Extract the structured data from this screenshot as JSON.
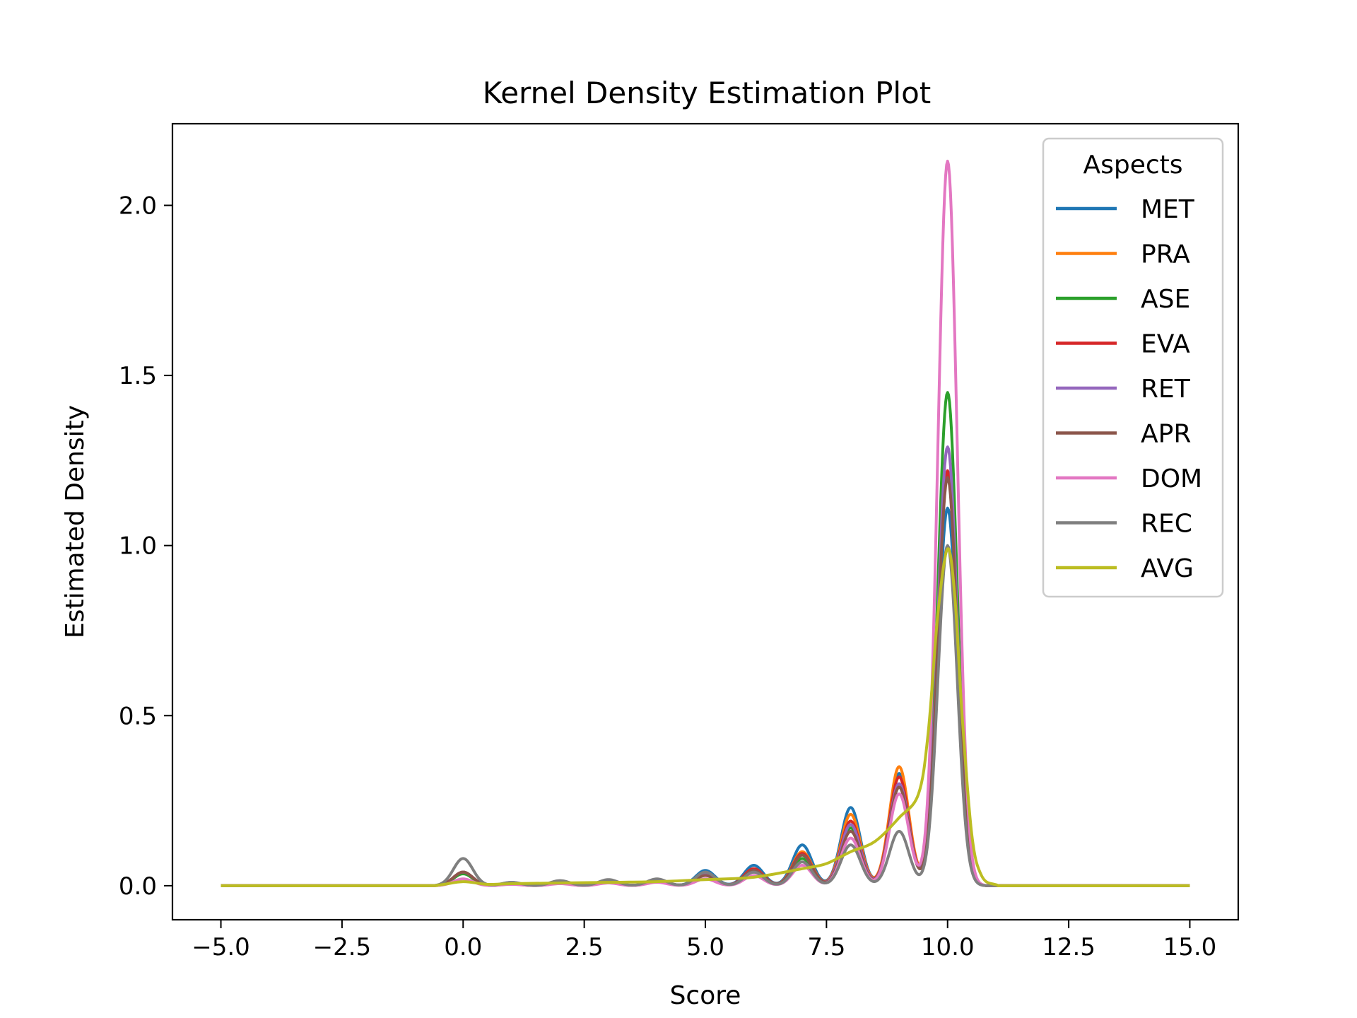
{
  "chart_data": {
    "type": "line",
    "title": "Kernel Density Estimation Plot",
    "xlabel": "Score",
    "ylabel": "Estimated Density",
    "xlim": [
      -6.0,
      16.0
    ],
    "ylim": [
      -0.1,
      2.24
    ],
    "xticks": [
      -5.0,
      -2.5,
      0.0,
      2.5,
      5.0,
      7.5,
      10.0,
      12.5,
      15.0
    ],
    "xtick_labels": [
      "−5.0",
      "−2.5",
      "0.0",
      "2.5",
      "5.0",
      "7.5",
      "10.0",
      "12.5",
      "15.0"
    ],
    "yticks": [
      0.0,
      0.5,
      1.0,
      1.5,
      2.0
    ],
    "ytick_labels": [
      "0.0",
      "0.5",
      "1.0",
      "1.5",
      "2.0"
    ],
    "grid": false,
    "legend": {
      "title": "Aspects",
      "position": "top-right"
    },
    "kde_bandwidth": 0.2,
    "series": [
      {
        "name": "MET",
        "color": "#1f77b4",
        "peaks": [
          [
            0,
            0.04
          ],
          [
            1,
            0.008
          ],
          [
            2,
            0.012
          ],
          [
            3,
            0.015
          ],
          [
            4,
            0.018
          ],
          [
            5,
            0.045
          ],
          [
            6,
            0.06
          ],
          [
            7,
            0.12
          ],
          [
            8,
            0.23
          ],
          [
            9,
            0.33
          ],
          [
            10,
            1.11
          ]
        ]
      },
      {
        "name": "PRA",
        "color": "#ff7f0e",
        "peaks": [
          [
            0,
            0.04
          ],
          [
            1,
            0.006
          ],
          [
            2,
            0.01
          ],
          [
            3,
            0.012
          ],
          [
            4,
            0.015
          ],
          [
            5,
            0.035
          ],
          [
            6,
            0.05
          ],
          [
            7,
            0.1
          ],
          [
            8,
            0.21
          ],
          [
            9,
            0.35
          ],
          [
            10,
            1.21
          ]
        ]
      },
      {
        "name": "ASE",
        "color": "#2ca02c",
        "peaks": [
          [
            0,
            0.035
          ],
          [
            1,
            0.005
          ],
          [
            2,
            0.008
          ],
          [
            3,
            0.01
          ],
          [
            4,
            0.012
          ],
          [
            5,
            0.03
          ],
          [
            6,
            0.04
          ],
          [
            7,
            0.08
          ],
          [
            8,
            0.17
          ],
          [
            9,
            0.29
          ],
          [
            10,
            1.45
          ]
        ]
      },
      {
        "name": "EVA",
        "color": "#d62728",
        "peaks": [
          [
            0,
            0.04
          ],
          [
            1,
            0.006
          ],
          [
            2,
            0.01
          ],
          [
            3,
            0.012
          ],
          [
            4,
            0.015
          ],
          [
            5,
            0.035
          ],
          [
            6,
            0.05
          ],
          [
            7,
            0.095
          ],
          [
            8,
            0.19
          ],
          [
            9,
            0.32
          ],
          [
            10,
            1.22
          ]
        ]
      },
      {
        "name": "RET",
        "color": "#9467bd",
        "peaks": [
          [
            0,
            0.04
          ],
          [
            1,
            0.006
          ],
          [
            2,
            0.01
          ],
          [
            3,
            0.012
          ],
          [
            4,
            0.015
          ],
          [
            5,
            0.035
          ],
          [
            6,
            0.045
          ],
          [
            7,
            0.09
          ],
          [
            8,
            0.18
          ],
          [
            9,
            0.3
          ],
          [
            10,
            1.29
          ]
        ]
      },
      {
        "name": "APR",
        "color": "#8c564b",
        "peaks": [
          [
            0,
            0.04
          ],
          [
            1,
            0.006
          ],
          [
            2,
            0.01
          ],
          [
            3,
            0.012
          ],
          [
            4,
            0.015
          ],
          [
            5,
            0.03
          ],
          [
            6,
            0.045
          ],
          [
            7,
            0.09
          ],
          [
            8,
            0.16
          ],
          [
            9,
            0.29
          ],
          [
            10,
            1.2
          ]
        ]
      },
      {
        "name": "DOM",
        "color": "#e377c2",
        "peaks": [
          [
            0,
            0.02
          ],
          [
            1,
            0.004
          ],
          [
            2,
            0.006
          ],
          [
            3,
            0.008
          ],
          [
            4,
            0.01
          ],
          [
            5,
            0.02
          ],
          [
            6,
            0.03
          ],
          [
            7,
            0.06
          ],
          [
            8,
            0.14
          ],
          [
            9,
            0.27
          ],
          [
            10,
            2.13
          ]
        ]
      },
      {
        "name": "REC",
        "color": "#7f7f7f",
        "peaks": [
          [
            0,
            0.08
          ],
          [
            1,
            0.01
          ],
          [
            2,
            0.015
          ],
          [
            3,
            0.018
          ],
          [
            4,
            0.02
          ],
          [
            5,
            0.04
          ],
          [
            6,
            0.04
          ],
          [
            7,
            0.07
          ],
          [
            8,
            0.12
          ],
          [
            9,
            0.16
          ],
          [
            10,
            1.0
          ]
        ]
      },
      {
        "name": "AVG",
        "color": "#bcbd22",
        "smooth": true,
        "points": [
          [
            -5,
            0
          ],
          [
            -1,
            0
          ],
          [
            -0.5,
            0.002
          ],
          [
            0,
            0.012
          ],
          [
            0.5,
            0.004
          ],
          [
            1,
            0.006
          ],
          [
            2,
            0.008
          ],
          [
            3,
            0.01
          ],
          [
            4,
            0.012
          ],
          [
            5,
            0.018
          ],
          [
            6,
            0.025
          ],
          [
            7,
            0.05
          ],
          [
            7.5,
            0.065
          ],
          [
            8,
            0.1
          ],
          [
            8.5,
            0.13
          ],
          [
            9,
            0.2
          ],
          [
            9.4,
            0.27
          ],
          [
            9.6,
            0.45
          ],
          [
            9.8,
            0.8
          ],
          [
            10,
            0.99
          ],
          [
            10.15,
            0.85
          ],
          [
            10.3,
            0.5
          ],
          [
            10.5,
            0.15
          ],
          [
            10.7,
            0.03
          ],
          [
            11,
            0.003
          ],
          [
            11.5,
            0
          ],
          [
            15,
            0
          ]
        ]
      }
    ]
  }
}
